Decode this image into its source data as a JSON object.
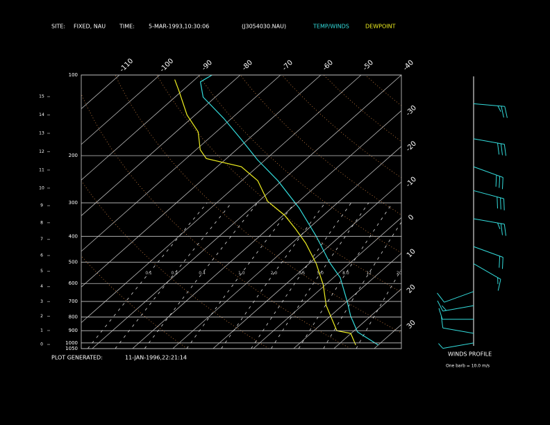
{
  "header": {
    "site_label": "SITE:",
    "site": "FIXED, NAU",
    "time_label": "TIME:",
    "time": "5-MAR-1993,10:30:06",
    "file": "(J3054030.NAU)"
  },
  "footer": {
    "generated_label": "PLOT GENERATED:",
    "generated": "11-JAN-1996,22:21:14"
  },
  "chart_data": {
    "type": "skewt",
    "plim": [
      1050,
      100
    ],
    "pressure_ticks": [
      100,
      200,
      300,
      400,
      500,
      600,
      700,
      800,
      900,
      1000,
      1050
    ],
    "height_ticks": [
      0,
      1,
      2,
      3,
      4,
      5,
      6,
      7,
      8,
      9,
      10,
      11,
      12,
      13,
      14,
      15
    ],
    "temp_ticks": [
      -110,
      -100,
      -90,
      -80,
      -70,
      -60,
      -50,
      -40,
      -30,
      -20,
      -10,
      0,
      10,
      20,
      30
    ],
    "dry_adiabats": [
      -20,
      0,
      20,
      40,
      60,
      80,
      100,
      120,
      140,
      160
    ],
    "mixing_ratios": [
      {
        "value": 0.1,
        "label": "0.1"
      },
      {
        "value": 0.2,
        "label": "0.2"
      },
      {
        "value": 0.4,
        "label": "0.4"
      },
      {
        "value": 1,
        "label": "1.0"
      },
      {
        "value": 2,
        "label": "2.0"
      },
      {
        "value": 3.5,
        "label": "3.5"
      },
      {
        "value": 5,
        "label": "5.0"
      },
      {
        "value": 8,
        "label": "8.0"
      },
      {
        "value": 12,
        "label": "12"
      },
      {
        "value": 20,
        "label": "20"
      }
    ],
    "grid": true,
    "series": [
      {
        "name": "TEMP/WINDS",
        "color": "#33dddd",
        "pressure": [
          1018,
          910,
          793,
          704,
          571,
          501,
          399,
          314,
          248,
          207,
          173,
          145,
          121,
          106,
          100
        ],
        "values": [
          30,
          21.2,
          15,
          10.3,
          1.7,
          -5.2,
          -16,
          -28,
          -41,
          -52,
          -62,
          -72,
          -83,
          -88,
          -87
        ]
      },
      {
        "name": "DEWPOINT",
        "color": "#f0f020",
        "pressure": [
          1018,
          921,
          900,
          725,
          606,
          506,
          424,
          376,
          334,
          296,
          248,
          220,
          205,
          190,
          163,
          141,
          114,
          104
        ],
        "values": [
          24.4,
          19.9,
          15.7,
          6,
          -0.6,
          -8.2,
          -16.6,
          -23,
          -29.6,
          -37.8,
          -46,
          -54,
          -65,
          -69,
          -74.5,
          -82,
          -91,
          -95
        ]
      }
    ],
    "winds": {
      "title": "WINDS PROFILE",
      "note": "One barb = 10.0 m/s",
      "pressure": [
        128,
        173,
        220,
        270,
        344,
        437,
        506,
        643,
        726,
        816,
        921,
        1000
      ],
      "direction": [
        95,
        100,
        110,
        105,
        100,
        110,
        120,
        250,
        260,
        270,
        280,
        260
      ],
      "speed": [
        25,
        30,
        30,
        30,
        25,
        20,
        15,
        10,
        15,
        10,
        10,
        5
      ]
    }
  }
}
